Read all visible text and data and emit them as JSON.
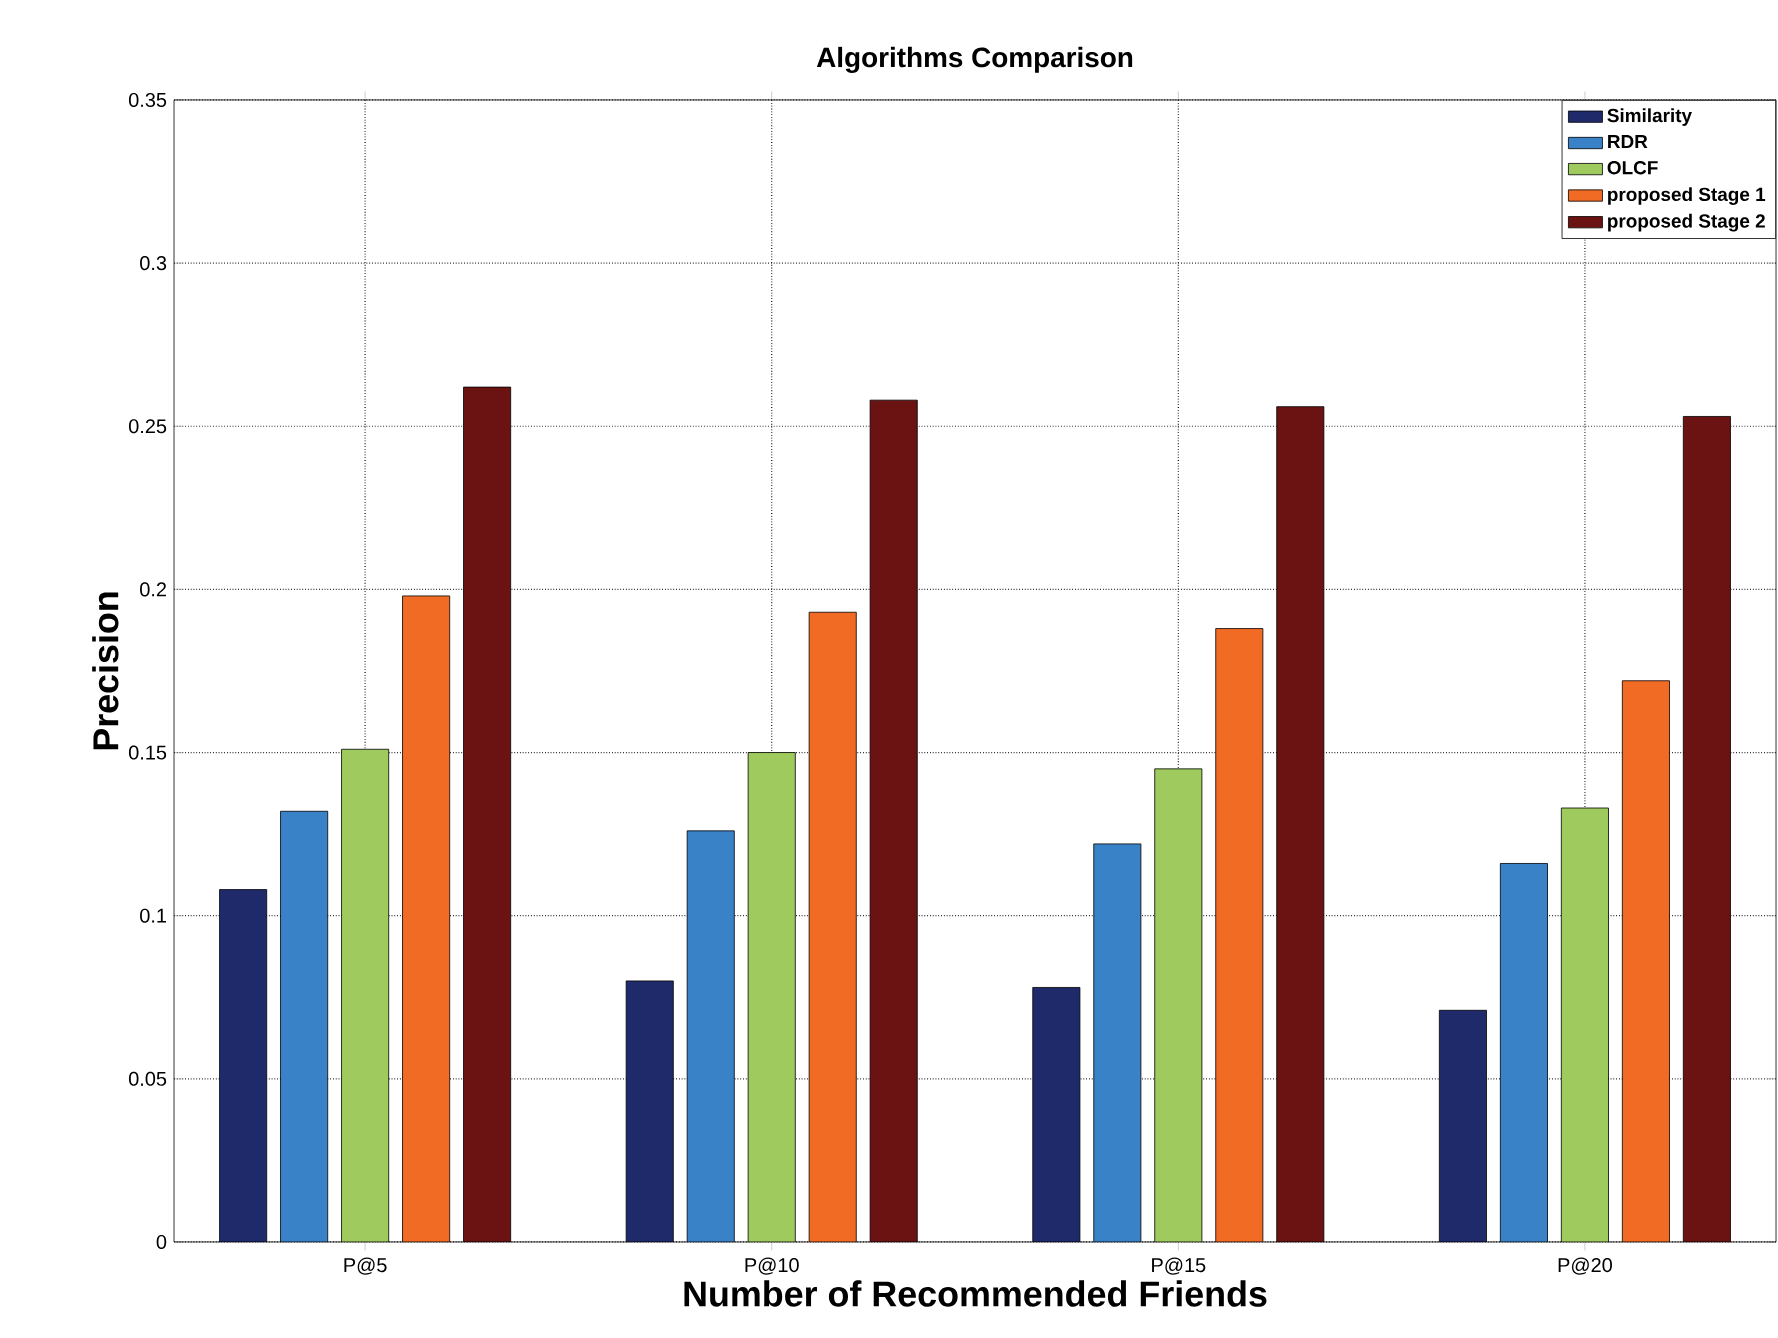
{
  "chart_data": {
    "type": "bar",
    "title": "Algorithms Comparison",
    "xlabel": "Number of Recommended Friends",
    "ylabel": "Precision",
    "categories": [
      "P@5",
      "P@10",
      "P@15",
      "P@20"
    ],
    "series": [
      {
        "name": "Similarity",
        "color": "#1f2a6b",
        "values": [
          0.108,
          0.08,
          0.078,
          0.071
        ]
      },
      {
        "name": "RDR",
        "color": "#3a82c8",
        "values": [
          0.132,
          0.126,
          0.122,
          0.116
        ]
      },
      {
        "name": "OLCF",
        "color": "#9fcb5e",
        "values": [
          0.151,
          0.15,
          0.145,
          0.133
        ]
      },
      {
        "name": "proposed Stage 1",
        "color": "#f26b24",
        "values": [
          0.198,
          0.193,
          0.188,
          0.172
        ]
      },
      {
        "name": "proposed Stage 2",
        "color": "#6b1212",
        "values": [
          0.262,
          0.258,
          0.256,
          0.253
        ]
      }
    ],
    "ylim": [
      0,
      0.35
    ],
    "yticks": [
      0,
      0.05,
      0.1,
      0.15,
      0.2,
      0.25,
      0.3,
      0.35
    ],
    "grid": true,
    "legend": "top right"
  }
}
